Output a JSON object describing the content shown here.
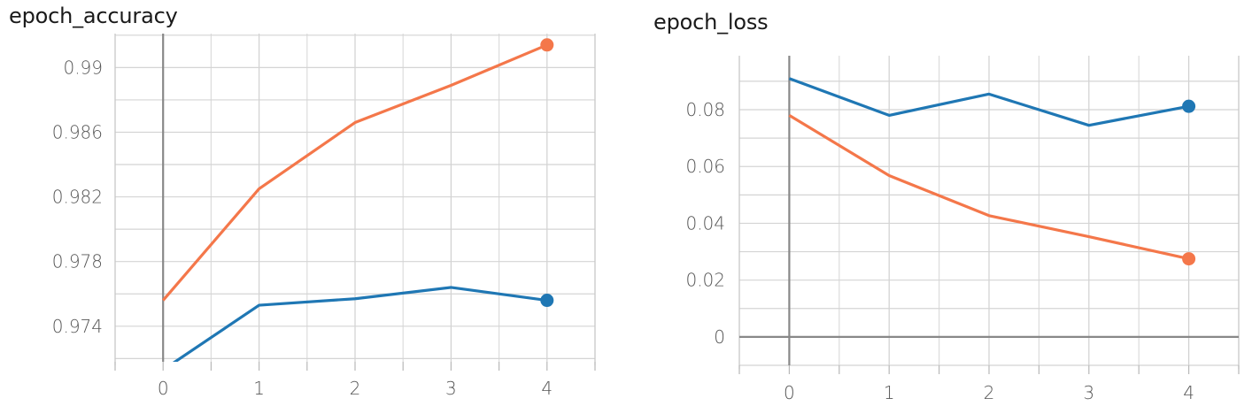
{
  "charts": [
    {
      "id": "acc",
      "chart_data": {
        "type": "line",
        "title": "epoch_accuracy",
        "x_ticks": [
          0,
          1,
          2,
          3,
          4
        ],
        "y_ticks": [
          0.974,
          0.978,
          0.982,
          0.986,
          0.99
        ],
        "y_tick_labels": [
          "0.974",
          "0.978",
          "0.982",
          "0.986",
          "0.99"
        ],
        "xlim": [
          -0.5,
          4.5
        ],
        "ylim": [
          0.9718,
          0.9921
        ],
        "grid": true,
        "series": [
          {
            "color": "#f4774a",
            "x": [
              0,
              1,
              2,
              3,
              4
            ],
            "y": [
              0.9756,
              0.9825,
              0.9866,
              0.9889,
              0.9914
            ]
          },
          {
            "color": "#1f77b4",
            "x": [
              0,
              1,
              2,
              3,
              4
            ],
            "y": [
              0.9713,
              0.9753,
              0.9757,
              0.9764,
              0.9756
            ]
          }
        ]
      }
    },
    {
      "id": "loss",
      "chart_data": {
        "type": "line",
        "title": "epoch_loss",
        "x_ticks": [
          0,
          1,
          2,
          3,
          4
        ],
        "y_ticks": [
          0,
          0.02,
          0.04,
          0.06,
          0.08
        ],
        "y_tick_labels": [
          "0",
          "0.02",
          "0.04",
          "0.06",
          "0.08"
        ],
        "xlim": [
          -0.5,
          4.5
        ],
        "ylim": [
          -0.01,
          0.099
        ],
        "grid": true,
        "series": [
          {
            "color": "#1f77b4",
            "x": [
              0,
              1,
              2,
              3,
              4
            ],
            "y": [
              0.091,
              0.078,
              0.0855,
              0.0745,
              0.0812
            ]
          },
          {
            "color": "#f4774a",
            "x": [
              0,
              1,
              2,
              3,
              4
            ],
            "y": [
              0.078,
              0.0568,
              0.0427,
              0.0353,
              0.0275
            ]
          }
        ]
      }
    }
  ]
}
